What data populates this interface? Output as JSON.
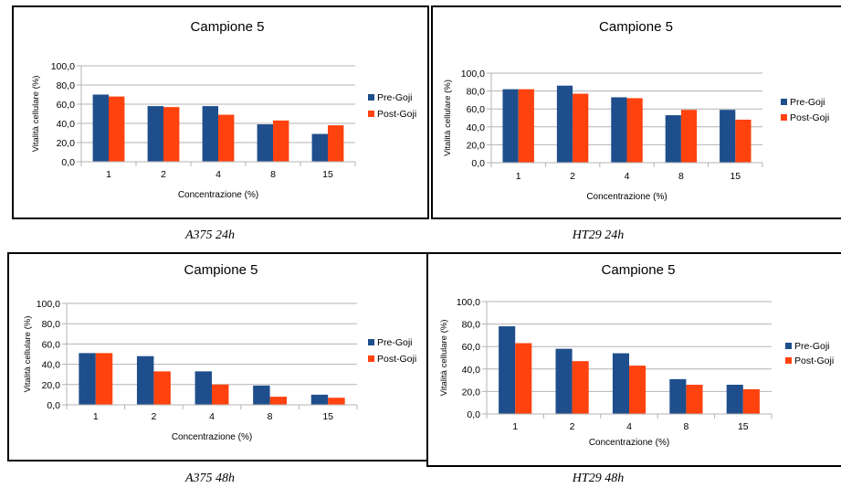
{
  "colors": {
    "pre": "#1f4e8c",
    "post": "#ff420e",
    "axis": "#b3b3b3",
    "text": "#000000"
  },
  "chart_data": [
    {
      "type": "bar",
      "caption": "A375 24h",
      "title": "Campione 5",
      "xlabel": "Concentrazione (%)",
      "ylabel": "Vitalità cellulare (%)",
      "categories": [
        "1",
        "2",
        "4",
        "8",
        "15"
      ],
      "ylim": [
        0,
        100
      ],
      "yticks": [
        "0,0",
        "20,0",
        "40,0",
        "60,0",
        "80,0",
        "100,0"
      ],
      "legend_position": "right",
      "series": [
        {
          "name": "Pre-Goji",
          "values": [
            70,
            58,
            58,
            39,
            29
          ]
        },
        {
          "name": "Post-Goji",
          "values": [
            68,
            57,
            49,
            43,
            38
          ]
        }
      ]
    },
    {
      "type": "bar",
      "caption": "HT29 24h",
      "title": "Campione 5",
      "xlabel": "Concentrazione (%)",
      "ylabel": "Vitalità cellulare (%)",
      "categories": [
        "1",
        "2",
        "4",
        "8",
        "15"
      ],
      "ylim": [
        0,
        100
      ],
      "yticks": [
        "0,0",
        "20,0",
        "40,0",
        "60,0",
        "80,0",
        "100,0"
      ],
      "legend_position": "right",
      "series": [
        {
          "name": "Pre-Goji",
          "values": [
            82,
            86,
            73,
            53,
            59
          ]
        },
        {
          "name": "Post-Goji",
          "values": [
            82,
            77,
            72,
            59,
            48
          ]
        }
      ]
    },
    {
      "type": "bar",
      "caption": "A375 48h",
      "title": "Campione 5",
      "xlabel": "Concentrazione (%)",
      "ylabel": "Vitalità cellulare (%)",
      "categories": [
        "1",
        "2",
        "4",
        "8",
        "15"
      ],
      "ylim": [
        0,
        100
      ],
      "yticks": [
        "0,0",
        "20,0",
        "40,0",
        "60,0",
        "80,0",
        "100,0"
      ],
      "legend_position": "right",
      "series": [
        {
          "name": "Pre-Goji",
          "values": [
            51,
            48,
            33,
            19,
            10
          ]
        },
        {
          "name": "Post-Goji",
          "values": [
            51,
            33,
            20,
            8,
            7
          ]
        }
      ]
    },
    {
      "type": "bar",
      "caption": "HT29 48h",
      "title": "Campione 5",
      "xlabel": "Concentrazione (%)",
      "ylabel": "Vitalità cellulare (%)",
      "categories": [
        "1",
        "2",
        "4",
        "8",
        "15"
      ],
      "ylim": [
        0,
        100
      ],
      "yticks": [
        "0,0",
        "20,0",
        "40,0",
        "60,0",
        "80,0",
        "100,0"
      ],
      "legend_position": "right",
      "series": [
        {
          "name": "Pre-Goji",
          "values": [
            78,
            58,
            54,
            31,
            26
          ]
        },
        {
          "name": "Post-Goji",
          "values": [
            63,
            47,
            43,
            26,
            22
          ]
        }
      ]
    }
  ]
}
